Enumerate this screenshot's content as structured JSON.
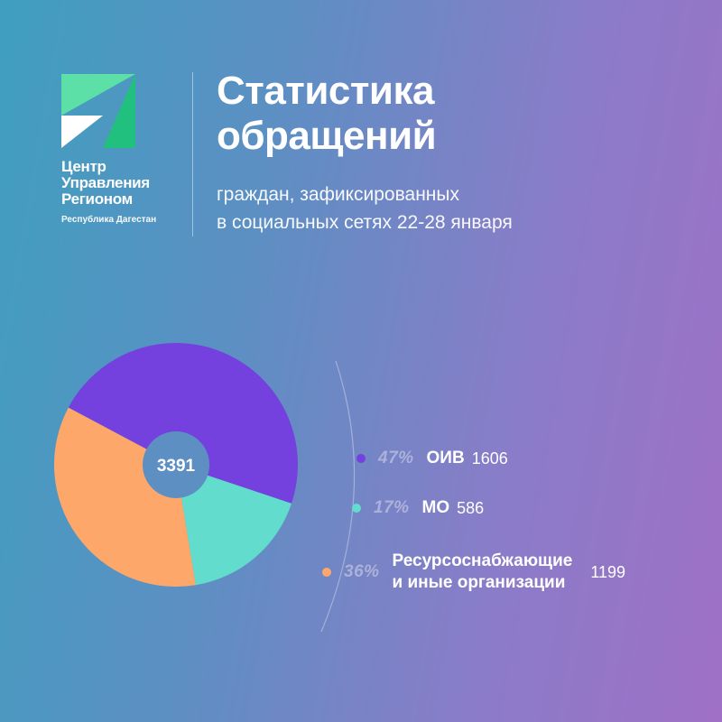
{
  "logo": {
    "name": "Центр\nУправления\nРегионом",
    "region": "Республика Дагестан",
    "colors": {
      "light": "#5ce0a7",
      "dark": "#22c07e",
      "white": "#ffffff"
    }
  },
  "header": {
    "title": "Статистика\nобращений",
    "subtitle": "граждан, зафиксированных\nв социальных сетях 22-28 января"
  },
  "chart_data": {
    "type": "pie",
    "total_label": "3391",
    "total": 3391,
    "legend_position": "right",
    "slices": [
      {
        "label": "ОИВ",
        "percent_label": "47%",
        "percent": 47,
        "value": 1606,
        "value_label": "1606",
        "color": "#7441de"
      },
      {
        "label": "МО",
        "percent_label": "17%",
        "percent": 17,
        "value": 586,
        "value_label": "586",
        "color": "#62dccc"
      },
      {
        "label": "Ресурсоснабжающие\nи иные организации",
        "percent_label": "36%",
        "percent": 36,
        "value": 1199,
        "value_label": "1199",
        "color": "#fea76a"
      }
    ]
  }
}
